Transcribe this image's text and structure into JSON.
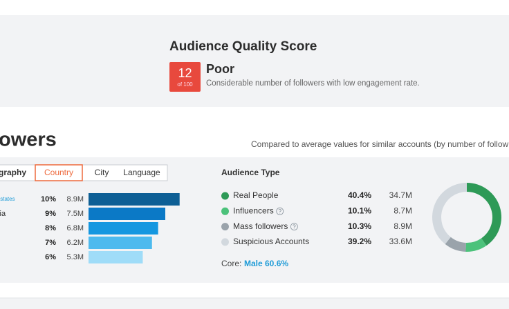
{
  "quality": {
    "title": "Audience Quality Score",
    "score": 12,
    "score_scale": "of 100",
    "rating": "Poor",
    "description": "Considerable number of followers with low engagement rate."
  },
  "followers_section": {
    "heading": "owers",
    "comparison_note": "Compared to average values for similar accounts (by number of follow"
  },
  "geography": {
    "tabs": [
      "graphy",
      "Country",
      "City",
      "Language"
    ],
    "active_tab": 1,
    "rows": [
      {
        "name": "v states",
        "percent": {
          "value": 10,
          "label": "10%"
        },
        "followers": {
          "value": 8.9,
          "label": "8.9M"
        },
        "color": "#0e5f95"
      },
      {
        "name": "sia",
        "percent": {
          "value": 9,
          "label": "9%"
        },
        "followers": {
          "value": 7.5,
          "label": "7.5M"
        },
        "color": "#0b79c6"
      },
      {
        "name": null,
        "percent": {
          "value": 8,
          "label": "8%"
        },
        "followers": {
          "value": 6.8,
          "label": "6.8M"
        },
        "color": "#1597e0"
      },
      {
        "name": null,
        "percent": {
          "value": 7,
          "label": "7%"
        },
        "followers": {
          "value": 6.2,
          "label": "6.2M"
        },
        "color": "#4dbaee"
      },
      {
        "name": null,
        "percent": {
          "value": 6,
          "label": "6%"
        },
        "followers": {
          "value": 5.3,
          "label": "5.3M"
        },
        "color": "#9fdcf8"
      }
    ]
  },
  "audience_type": {
    "title": "Audience Type",
    "rows": [
      {
        "name": "Real People",
        "color": "#2e9a57",
        "help": false,
        "percent": {
          "value": 40.4,
          "label": "40.4%"
        },
        "followers": "34.7M"
      },
      {
        "name": "Influencers",
        "color": "#4cc27b",
        "help": true,
        "percent": {
          "value": 10.1,
          "label": "10.1%"
        },
        "followers": "8.7M"
      },
      {
        "name": "Mass followers",
        "color": "#9aa3ab",
        "help": true,
        "percent": {
          "value": 10.3,
          "label": "10.3%"
        },
        "followers": "8.9M"
      },
      {
        "name": "Suspicious Accounts",
        "color": "#d2d8de",
        "help": false,
        "percent": {
          "value": 39.2,
          "label": "39.2%"
        },
        "followers": "33.6M"
      }
    ],
    "core_label": "Core:",
    "core_value": "Male 60.6%"
  }
}
